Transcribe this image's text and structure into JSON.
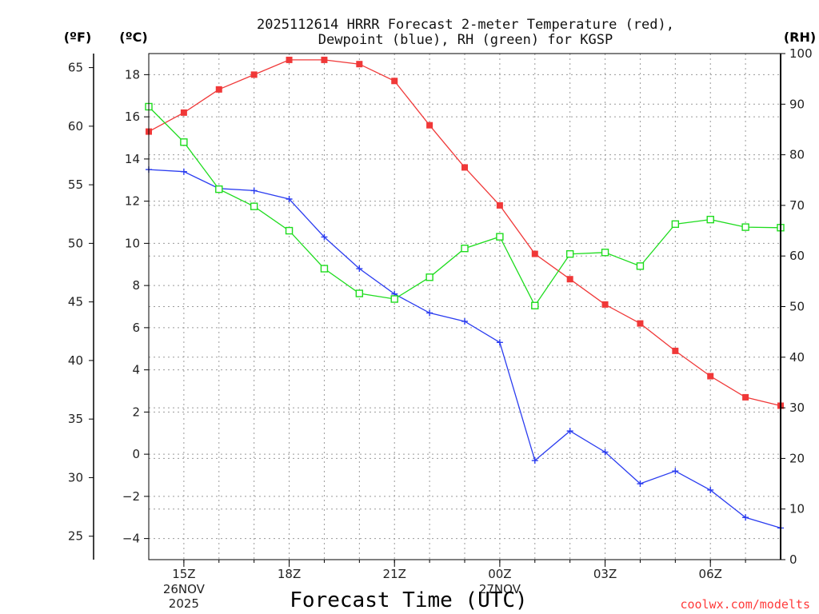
{
  "chart_data": {
    "type": "line",
    "title": [
      "2025112614 HRRR Forecast 2-meter Temperature (red),",
      "Dewpoint (blue), RH (green) for KGSP"
    ],
    "xlabel": "Forecast Time (UTC)",
    "credit": "coolwx.com/modelts",
    "units": {
      "left_f": "(ºF)",
      "left_c": "(ºC)",
      "right": "(RH)"
    },
    "x_hours": [
      14,
      15,
      16,
      17,
      18,
      19,
      20,
      21,
      22,
      23,
      24,
      25,
      26,
      27,
      28,
      29,
      30,
      31,
      32
    ],
    "x_range": [
      14,
      32
    ],
    "x_ticks": [
      {
        "hour": 15,
        "label": "15Z",
        "sub": [
          "26NOV",
          "2025"
        ]
      },
      {
        "hour": 18,
        "label": "18Z",
        "sub": []
      },
      {
        "hour": 21,
        "label": "21Z",
        "sub": []
      },
      {
        "hour": 24,
        "label": "00Z",
        "sub": [
          "27NOV"
        ]
      },
      {
        "hour": 27,
        "label": "03Z",
        "sub": []
      },
      {
        "hour": 30,
        "label": "06Z",
        "sub": []
      }
    ],
    "celsius_axis": {
      "range": [
        -5,
        19
      ],
      "ticks": [
        -4,
        -2,
        0,
        2,
        4,
        6,
        8,
        10,
        12,
        14,
        16,
        18
      ]
    },
    "fahrenheit_axis": {
      "ticks": [
        25,
        30,
        35,
        40,
        45,
        50,
        55,
        60,
        65
      ]
    },
    "rh_axis": {
      "range": [
        0,
        100
      ],
      "ticks": [
        0,
        10,
        20,
        30,
        40,
        50,
        60,
        70,
        80,
        90,
        100
      ]
    },
    "series": [
      {
        "name": "Temperature",
        "axis": "celsius",
        "color": "#f03838",
        "marker": "filled-square",
        "values": [
          15.3,
          16.2,
          17.3,
          18.0,
          18.7,
          18.7,
          18.5,
          17.7,
          15.6,
          13.6,
          11.8,
          9.5,
          8.3,
          7.1,
          6.2,
          4.9,
          3.7,
          2.7,
          2.3
        ]
      },
      {
        "name": "Dewpoint",
        "axis": "celsius",
        "color": "#2a3cf0",
        "marker": "plus",
        "values": [
          13.5,
          13.4,
          12.6,
          12.5,
          12.1,
          10.3,
          8.8,
          7.6,
          6.7,
          6.3,
          5.3,
          -0.3,
          1.1,
          0.1,
          -1.4,
          -0.8,
          -1.7,
          -3.0,
          -3.5
        ]
      },
      {
        "name": "RH",
        "axis": "rh",
        "color": "#1edc1e",
        "marker": "open-square",
        "values": [
          89.5,
          82.5,
          73.2,
          69.8,
          65.0,
          57.5,
          52.6,
          51.5,
          55.8,
          61.5,
          63.8,
          50.2,
          60.4,
          60.7,
          58.0,
          66.3,
          67.2,
          65.7,
          65.6
        ]
      }
    ]
  }
}
